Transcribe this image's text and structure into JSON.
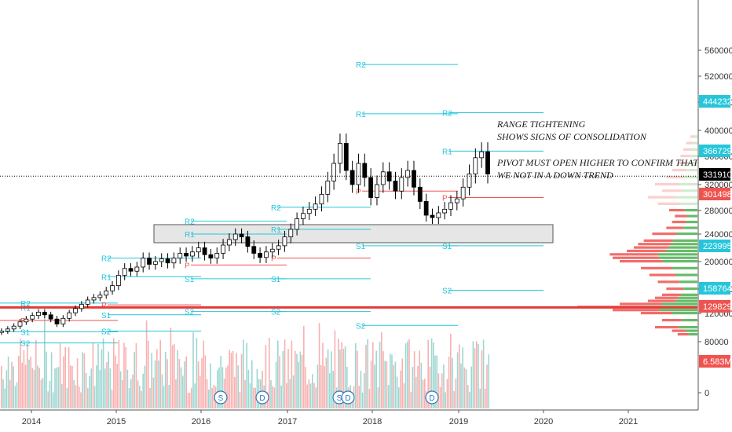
{
  "chart_data": {
    "type": "candlestick",
    "y_axis": {
      "scale": "log",
      "ticks": [
        0,
        80000,
        120000,
        160000,
        200000,
        240000,
        280000,
        320000,
        360000,
        400000,
        480000,
        520000,
        560000
      ],
      "tick_labels": [
        "0",
        "80000",
        "120000",
        "160000",
        "200000",
        "240000",
        "280000",
        "320000",
        "360000",
        "400000",
        "480000",
        "520000",
        "560000"
      ],
      "position": "right"
    },
    "x_axis": {
      "tick_labels": [
        "2014",
        "2015",
        "2016",
        "2017",
        "2018",
        "2019",
        "2020",
        "2021"
      ]
    },
    "price_badges": [
      {
        "label": "444232",
        "color": "#26c6da"
      },
      {
        "label": "366729",
        "color": "#26c6da"
      },
      {
        "label": "331910",
        "color": "#000000"
      },
      {
        "label": "301498",
        "color": "#ef5350"
      },
      {
        "label": "223995",
        "color": "#26c6da"
      },
      {
        "label": "158764",
        "color": "#26c6da"
      },
      {
        "label": "129829",
        "color": "#ef5350"
      },
      {
        "label": "6.583M",
        "color": "#ef5350"
      }
    ],
    "last_price": 331910,
    "horizontal_line": 129829,
    "annotations": [
      "RANGE TIGHTENING",
      "SHOWS SIGNS OF CONSOLIDATION",
      "PIVOT MUST OPEN HIGHER TO CONFIRM THAT",
      "WE NOT IN A DOWN TREND"
    ],
    "pivot_label_names": [
      "R2",
      "R1",
      "P",
      "S1",
      "S2"
    ],
    "event_markers": [
      "S",
      "D",
      "S",
      "D",
      "D"
    ],
    "candles_close": [
      95000,
      98000,
      102000,
      108000,
      112000,
      117000,
      122000,
      118000,
      112000,
      105000,
      113000,
      121000,
      128000,
      135000,
      142000,
      146000,
      150000,
      157000,
      165000,
      180000,
      190000,
      186000,
      192000,
      205000,
      196000,
      200000,
      204000,
      198000,
      205000,
      212000,
      208000,
      214000,
      220000,
      210000,
      205000,
      212000,
      224000,
      232000,
      240000,
      236000,
      222000,
      212000,
      206000,
      214000,
      218000,
      223000,
      236000,
      248000,
      266000,
      275000,
      282000,
      290000,
      305000,
      325000,
      350000,
      380000,
      340000,
      320000,
      350000,
      330000,
      300000,
      320000,
      338000,
      325000,
      310000,
      330000,
      340000,
      316000,
      294000,
      272000,
      268000,
      276000,
      282000,
      292000,
      298000,
      316000,
      335000,
      358000,
      367000,
      335000
    ],
    "up_color": "#26a69a",
    "down_color": "#ef5350",
    "accent_colors": {
      "pivot_resistance": "#26c6da",
      "pivot_center": "#ef5350",
      "highlight_box": "#e6e6e6"
    }
  }
}
